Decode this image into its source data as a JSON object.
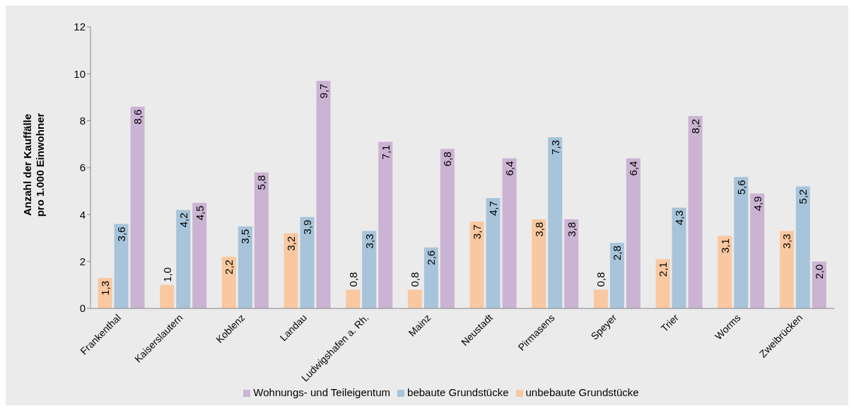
{
  "chart_data": {
    "type": "bar",
    "categories": [
      "Frankenthal",
      "Kaiserslautern",
      "Koblenz",
      "Landau",
      "Ludwigshafen a. Rh.",
      "Mainz",
      "Neustadt",
      "Pirmasens",
      "Speyer",
      "Trier",
      "Worms",
      "Zweibrücken"
    ],
    "ylabel": "Anzahl der Kauffälle\npro 1.000 Einwohner",
    "ylim": [
      0,
      12
    ],
    "yticks": [
      0,
      2,
      4,
      6,
      8,
      10,
      12
    ],
    "grid": false,
    "legend": "bottom",
    "series": [
      {
        "name": "unbebaute Grundstücke",
        "color": "#fac8a0",
        "values": [
          1.3,
          1.0,
          2.2,
          3.2,
          0.8,
          0.8,
          3.7,
          3.8,
          0.8,
          2.1,
          3.1,
          3.3
        ],
        "value_labels": [
          "1,3",
          "1,0",
          "2,2",
          "3,2",
          "0,8",
          "0,8",
          "3,7",
          "3,8",
          "0,8",
          "2,1",
          "3,1",
          "3,3"
        ]
      },
      {
        "name": "bebaute Grundstücke",
        "color": "#a8c4da",
        "values": [
          3.6,
          4.2,
          3.5,
          3.9,
          3.3,
          2.6,
          4.7,
          7.3,
          2.8,
          4.3,
          5.6,
          5.2
        ],
        "value_labels": [
          "3,6",
          "4,2",
          "3,5",
          "3,9",
          "3,3",
          "2,6",
          "4,7",
          "7,3",
          "2,8",
          "4,3",
          "5,6",
          "5,2"
        ]
      },
      {
        "name": "Wohnungs- und Teileigentum",
        "color": "#cbb3d3",
        "values": [
          8.6,
          4.5,
          5.8,
          9.7,
          7.1,
          6.8,
          6.4,
          3.8,
          6.4,
          8.2,
          4.9,
          2.0
        ],
        "value_labels": [
          "8,6",
          "4,5",
          "5,8",
          "9,7",
          "7,1",
          "6,8",
          "6,4",
          "3,8",
          "6,4",
          "8,2",
          "4,9",
          "2,0"
        ]
      }
    ]
  }
}
